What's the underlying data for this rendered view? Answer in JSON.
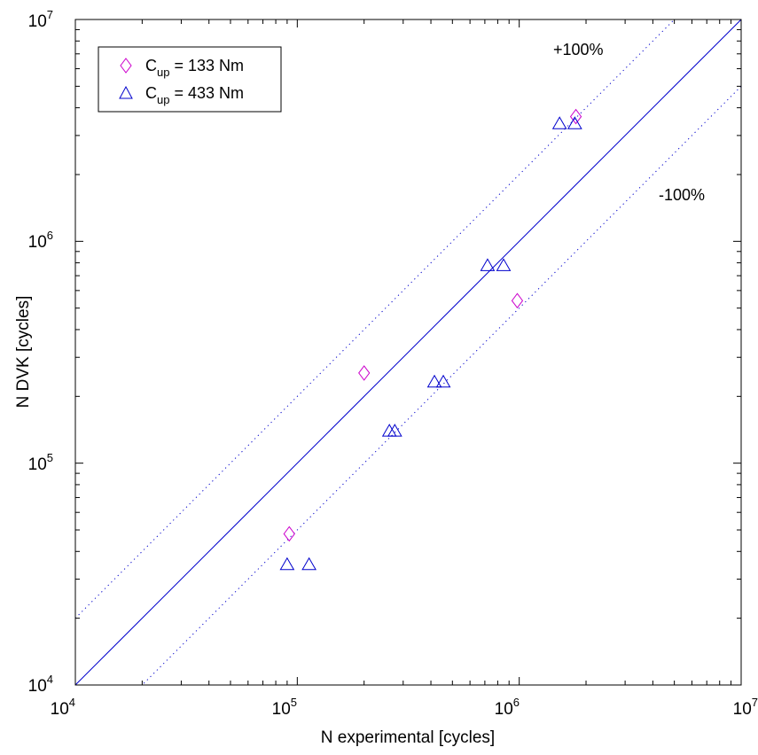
{
  "chart_data": {
    "type": "scatter",
    "title": "",
    "xlabel": "N experimental [cycles]",
    "ylabel": "N DVK [cycles]",
    "xscale": "log",
    "yscale": "log",
    "xlim": [
      10000,
      10000000
    ],
    "ylim": [
      10000,
      10000000
    ],
    "x_ticks": [
      {
        "base": "10",
        "exp": "4"
      },
      {
        "base": "10",
        "exp": "5"
      },
      {
        "base": "10",
        "exp": "6"
      },
      {
        "base": "10",
        "exp": "7"
      }
    ],
    "y_ticks": [
      {
        "base": "10",
        "exp": "4"
      },
      {
        "base": "10",
        "exp": "5"
      },
      {
        "base": "10",
        "exp": "6"
      },
      {
        "base": "10",
        "exp": "7"
      }
    ],
    "grid": false,
    "legend_position": "top-left",
    "series": [
      {
        "name_main": "C",
        "name_sub": "up",
        "name_rest": " = 133 Nm",
        "marker": "diamond",
        "color": "#cc00cc",
        "points": [
          {
            "x": 92000,
            "y": 48000
          },
          {
            "x": 200000,
            "y": 255000
          },
          {
            "x": 980000,
            "y": 540000
          },
          {
            "x": 1800000,
            "y": 3650000
          }
        ]
      },
      {
        "name_main": "C",
        "name_sub": "up",
        "name_rest": " = 433 Nm",
        "marker": "triangle",
        "color": "#0000cc",
        "points": [
          {
            "x": 90000,
            "y": 35000
          },
          {
            "x": 113000,
            "y": 35000
          },
          {
            "x": 260000,
            "y": 140000
          },
          {
            "x": 275000,
            "y": 140000
          },
          {
            "x": 415000,
            "y": 233000
          },
          {
            "x": 455000,
            "y": 233000
          },
          {
            "x": 720000,
            "y": 780000
          },
          {
            "x": 850000,
            "y": 780000
          },
          {
            "x": 1520000,
            "y": 3400000
          },
          {
            "x": 1780000,
            "y": 3400000
          }
        ]
      }
    ],
    "reference_lines": [
      {
        "label": "",
        "factor": 1,
        "style": "solid",
        "color": "#0000cc"
      },
      {
        "label": "+100%",
        "factor": 2,
        "style": "dotted",
        "color": "#0000cc"
      },
      {
        "label": "-100%",
        "factor": 0.5,
        "style": "dotted",
        "color": "#0000cc"
      }
    ]
  }
}
